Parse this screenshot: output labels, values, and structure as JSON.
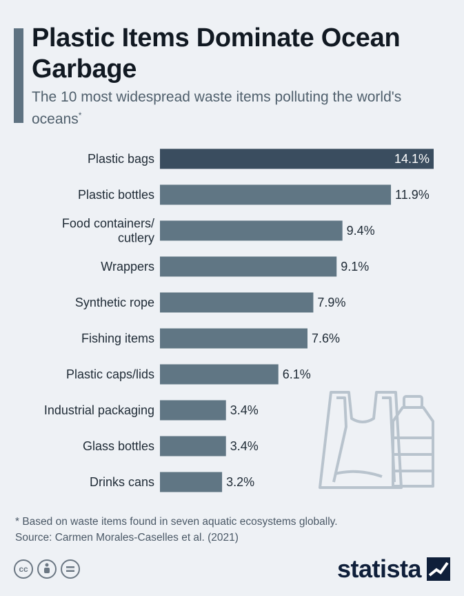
{
  "header": {
    "title": "Plastic Items Dominate Ocean Garbage",
    "subtitle": "The 10 most widespread waste items polluting the world's oceans",
    "subtitle_mark": "*"
  },
  "chart_data": {
    "type": "bar",
    "orientation": "horizontal",
    "categories": [
      "Plastic bags",
      "Plastic bottles",
      "Food containers/ cutlery",
      "Wrappers",
      "Synthetic rope",
      "Fishing items",
      "Plastic caps/lids",
      "Industrial packaging",
      "Glass bottles",
      "Drinks cans"
    ],
    "label_lines": [
      [
        "Plastic bags"
      ],
      [
        "Plastic bottles"
      ],
      [
        "Food containers/",
        "cutlery"
      ],
      [
        "Wrappers"
      ],
      [
        "Synthetic rope"
      ],
      [
        "Fishing items"
      ],
      [
        "Plastic caps/lids"
      ],
      [
        "Industrial packaging"
      ],
      [
        "Glass bottles"
      ],
      [
        "Drinks cans"
      ]
    ],
    "values": [
      14.1,
      11.9,
      9.4,
      9.1,
      7.9,
      7.6,
      6.1,
      3.4,
      3.4,
      3.2
    ],
    "value_labels": [
      "14.1%",
      "11.9%",
      "9.4%",
      "9.1%",
      "7.9%",
      "7.6%",
      "6.1%",
      "3.4%",
      "3.4%",
      "3.2%"
    ],
    "highlight_index": 0,
    "xlim": [
      0,
      14.1
    ],
    "grid": false,
    "colors": {
      "highlight": "#3a4d5f",
      "bar": "#607684",
      "label": "#1e2a35",
      "label_inside": "#ffffff"
    }
  },
  "footer": {
    "footnote": "* Based on waste items found in seven aquatic ecosystems globally.",
    "source": "Source: Carmen Morales-Caselles et al. (2021)",
    "license_icons": [
      "creative-commons-icon",
      "attribution-icon",
      "no-derivatives-icon"
    ],
    "brand": "statista"
  }
}
